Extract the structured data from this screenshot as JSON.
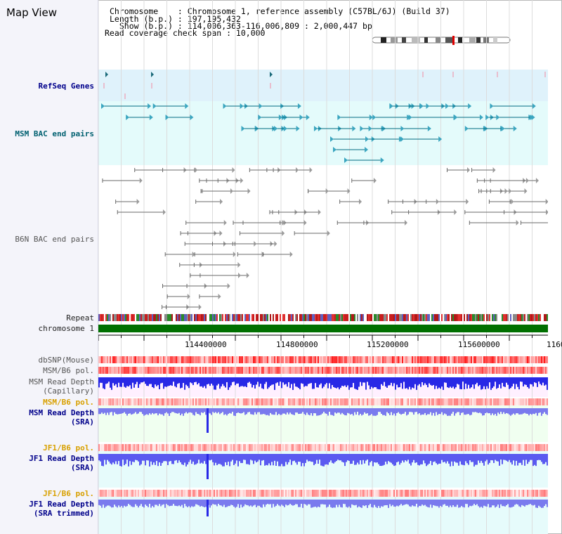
{
  "title": "Map View",
  "info": {
    "line1": "Chromosome    : Chromosome 1, reference assembly (C57BL/6J) (Build 37)",
    "line2": "Length (b.p.) : 197,195,432",
    "line3": "  Show (b.p.) : 114,006,363-116,006,809 : 2,000,447 bp",
    "line4": "Read coverage check span : 10,000"
  },
  "tracks": {
    "refseq": "RefSeq Genes",
    "msm_bac": "MSM BAC end pairs",
    "b6n_bac": "B6N BAC end pairs",
    "repeat": "Repeat",
    "chromosome": "chromosome 1",
    "dbsnp": "dbSNP(Mouse)",
    "msm_pol1": "MSM/B6 pol.",
    "msm_cap_1": "MSM Read Depth",
    "msm_cap_2": "(Capillary)",
    "msm_pol2": "MSM/B6 pol.",
    "msm_sra_1": "MSM Read Depth",
    "msm_sra_2": "(SRA)",
    "jf1_pol1": "JF1/B6 pol.",
    "jf1_sra_1": "JF1 Read Depth",
    "jf1_sra_2": "(SRA)",
    "jf1_pol2": "JF1/B6 pol.",
    "jf1_trim_1": "JF1 Read Depth",
    "jf1_trim_2": "(SRA trimmed)"
  },
  "axis": {
    "ticks": [
      "114400000",
      "114800000",
      "115200000",
      "115600000",
      "1160"
    ]
  },
  "colors": {
    "refseq_bg": "#dff2fb",
    "msm_bg": "#e4fbfb",
    "teal": "#006b80",
    "chrom_green": "#007000",
    "depth_blue": "#2828e6",
    "depth_light": "#7a7aee",
    "sra_bg": "#f0fff0"
  }
}
